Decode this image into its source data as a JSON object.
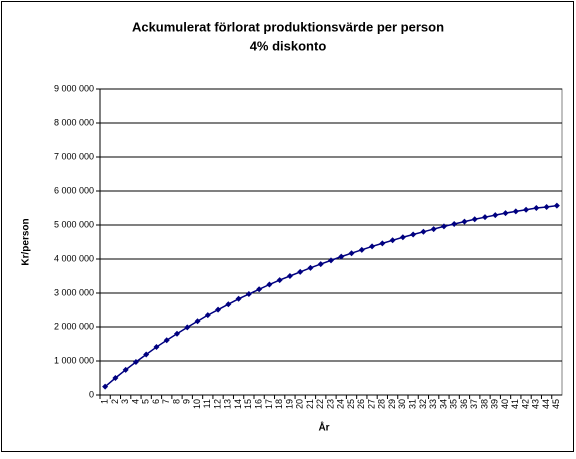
{
  "chart_data": {
    "type": "line",
    "title": "Ackumulerat förlorat produktionsvärde per person",
    "subtitle": "4% diskonto",
    "x_label": "År",
    "y_label": "Kr/person",
    "categories": [
      1,
      2,
      3,
      4,
      5,
      6,
      7,
      8,
      9,
      10,
      11,
      12,
      13,
      14,
      15,
      16,
      17,
      18,
      19,
      20,
      21,
      22,
      23,
      24,
      25,
      26,
      27,
      28,
      29,
      30,
      31,
      32,
      33,
      34,
      35,
      36,
      37,
      38,
      39,
      40,
      41,
      42,
      43,
      44,
      45
    ],
    "series": [
      {
        "name": "Kr/person",
        "color": "#000080",
        "values": [
          245000,
          500000,
          740000,
          970000,
          1190000,
          1410000,
          1610000,
          1800000,
          1990000,
          2170000,
          2350000,
          2510000,
          2670000,
          2830000,
          2970000,
          3110000,
          3250000,
          3380000,
          3500000,
          3620000,
          3740000,
          3850000,
          3960000,
          4070000,
          4170000,
          4270000,
          4370000,
          4460000,
          4550000,
          4640000,
          4720000,
          4800000,
          4880000,
          4960000,
          5030000,
          5100000,
          5170000,
          5230000,
          5290000,
          5350000,
          5400000,
          5450000,
          5500000,
          5530000,
          5570000
        ]
      }
    ],
    "ylim": [
      0,
      9000000
    ],
    "yticks": [
      0,
      {
        "value": 1000000,
        "label": "1 000 000"
      },
      {
        "value": 2000000,
        "label": "2 000 000"
      },
      {
        "value": 3000000,
        "label": "3 000 000"
      },
      {
        "value": 4000000,
        "label": "4 000 000"
      },
      {
        "value": 5000000,
        "label": "5 000 000"
      },
      {
        "value": 6000000,
        "label": "6 000 000"
      },
      {
        "value": 7000000,
        "label": "7 000 000"
      },
      {
        "value": 8000000,
        "label": "8 000 000"
      },
      {
        "value": 9000000,
        "label": "9 000 000"
      }
    ],
    "grid": true
  }
}
